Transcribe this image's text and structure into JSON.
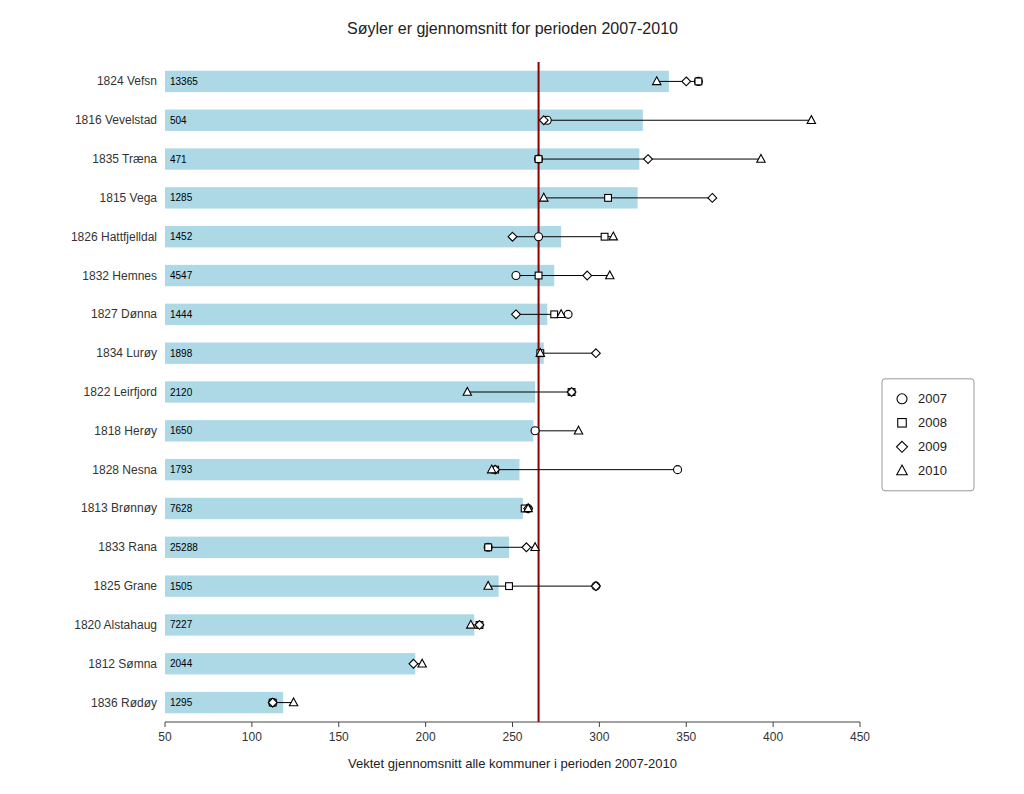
{
  "chart_data": {
    "type": "bar",
    "orientation": "horizontal",
    "title": "Søyler er gjennomsnitt for perioden 2007-2010",
    "xlabel": "Vektet gjennomsnitt alle kommuner i perioden 2007-2010",
    "categories": [
      "1824 Vefsn",
      "1816 Vevelstad",
      "1835 Træna",
      "1815 Vega",
      "1826 Hattfjelldal",
      "1832 Hemnes",
      "1827 Dønna",
      "1834 Lurøy",
      "1822 Leirfjord",
      "1818 Herøy",
      "1828 Nesna",
      "1813 Brønnøy",
      "1833 Rana",
      "1825 Grane",
      "1820 Alstahaug",
      "1812 Sømna",
      "1836 Rødøy"
    ],
    "values": [
      340,
      325,
      323,
      322,
      278,
      274,
      270,
      268,
      263,
      262,
      254,
      256,
      248,
      242,
      228,
      194,
      118
    ],
    "color": "#add8e6",
    "population": [
      13365,
      504,
      471,
      1285,
      1452,
      4547,
      1444,
      1898,
      2120,
      1650,
      1793,
      7628,
      25288,
      1505,
      7227,
      2044,
      1295
    ],
    "series": [
      {
        "name": "2007",
        "type": "scatter",
        "marker": "circle",
        "color": "#000000",
        "values": [
          357,
          270,
          265,
          null,
          265,
          252,
          282,
          null,
          null,
          263,
          345,
          259,
          236,
          298,
          null,
          null,
          112
        ]
      },
      {
        "name": "2008",
        "type": "scatter",
        "marker": "square",
        "color": "#000000",
        "values": [
          357,
          null,
          265,
          305,
          303,
          265,
          274,
          266,
          284,
          null,
          240,
          257,
          236,
          248,
          231,
          null,
          112
        ]
      },
      {
        "name": "2009",
        "type": "scatter",
        "marker": "diamond",
        "color": "#000000",
        "values": [
          350,
          268,
          328,
          365,
          250,
          293,
          252,
          298,
          284,
          null,
          240,
          259,
          258,
          298,
          231,
          193,
          112
        ]
      },
      {
        "name": "2010",
        "type": "scatter",
        "marker": "triangle",
        "color": "#000000",
        "values": [
          333,
          422,
          393,
          268,
          308,
          306,
          278,
          266,
          224,
          288,
          238,
          259,
          263,
          236,
          226,
          198,
          124
        ]
      }
    ],
    "vline": {
      "value": 265,
      "color": "#8b0000"
    },
    "xlim": [
      50,
      450
    ],
    "xticks": [
      50,
      100,
      150,
      200,
      250,
      300,
      350,
      400,
      450
    ],
    "grid": false,
    "legend": "right"
  }
}
